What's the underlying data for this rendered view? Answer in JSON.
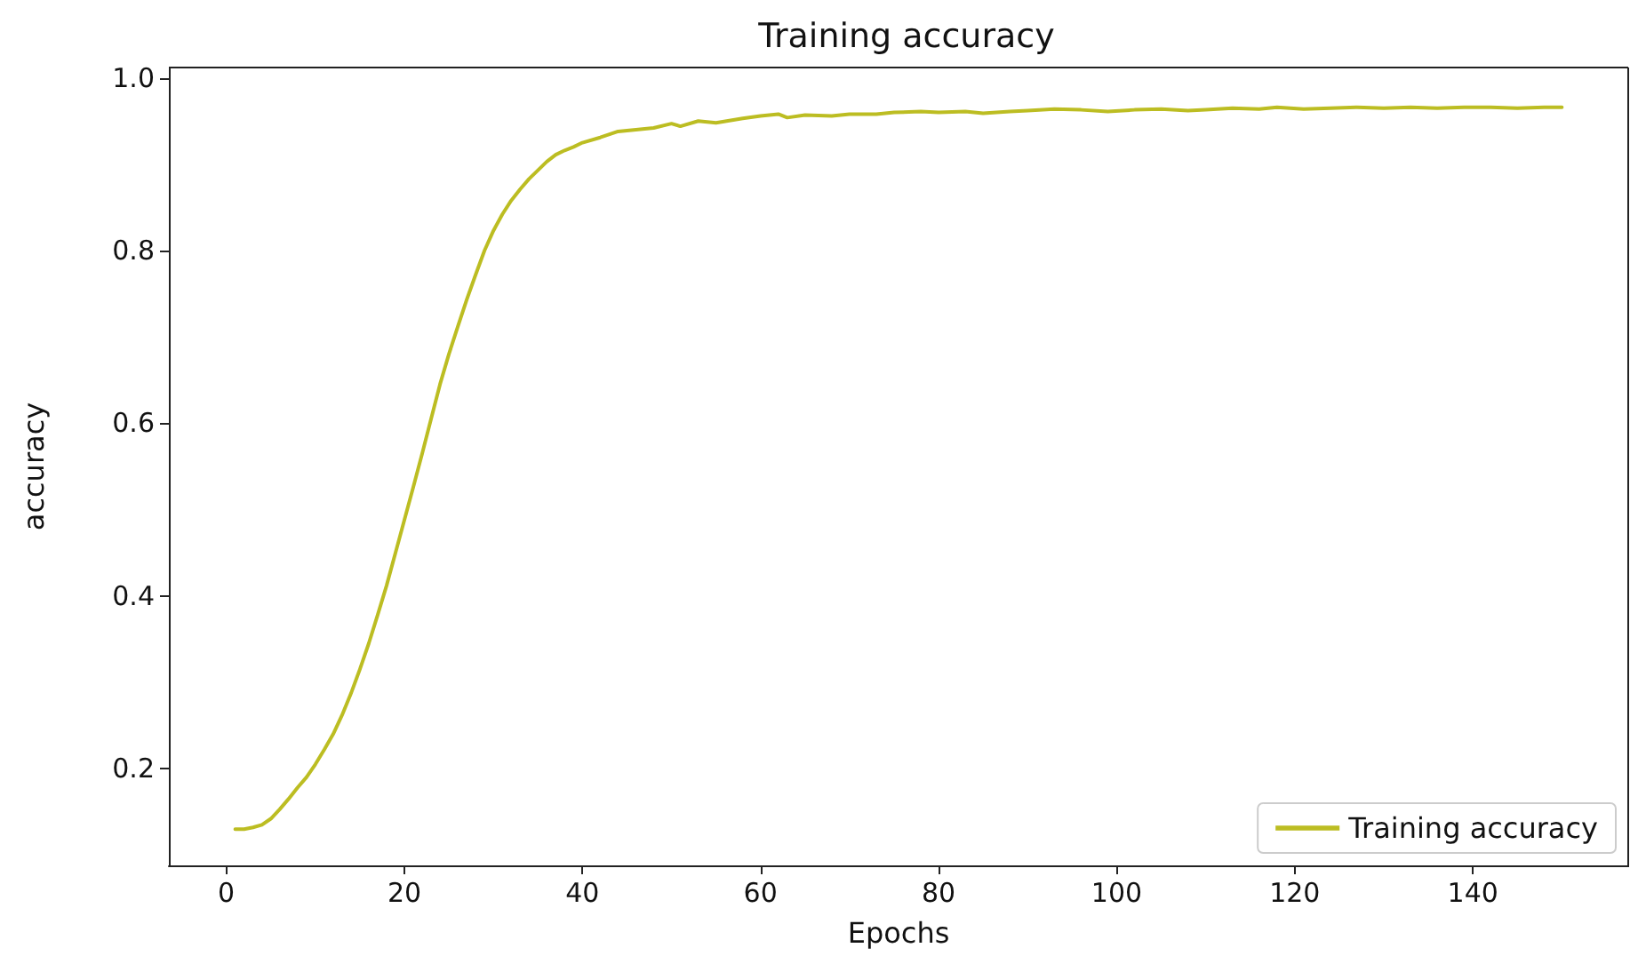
{
  "chart_data": {
    "type": "line",
    "title": "Training accuracy",
    "xlabel": "Epochs",
    "ylabel": "accuracy",
    "xlim": [
      -6.45,
      157.45
    ],
    "xticks": [
      0,
      20,
      40,
      60,
      80,
      100,
      120,
      140
    ],
    "ylim": [
      0.088,
      1.012
    ],
    "yticks": [
      {
        "value": 0.2,
        "label": "0.2"
      },
      {
        "value": 0.4,
        "label": "0.4"
      },
      {
        "value": 0.6,
        "label": "0.6"
      },
      {
        "value": 0.8,
        "label": "0.8"
      },
      {
        "value": 1.0,
        "label": "1.0"
      }
    ],
    "legend": "bottom right",
    "grid": false,
    "marker": "none",
    "line_style": "solid",
    "x": [
      1,
      2,
      3,
      4,
      5,
      6,
      7,
      8,
      9,
      10,
      11,
      12,
      13,
      14,
      15,
      16,
      17,
      18,
      19,
      20,
      21,
      22,
      23,
      24,
      25,
      26,
      27,
      28,
      29,
      30,
      31,
      32,
      33,
      34,
      35,
      36,
      37,
      38,
      39,
      40,
      42,
      44,
      46,
      48,
      50,
      51,
      53,
      55,
      58,
      60,
      62,
      63,
      65,
      68,
      70,
      73,
      75,
      78,
      80,
      83,
      85,
      88,
      90,
      93,
      96,
      99,
      102,
      105,
      108,
      110,
      113,
      116,
      118,
      121,
      124,
      127,
      130,
      133,
      136,
      139,
      142,
      145,
      148,
      150
    ],
    "series": [
      {
        "name": "Training accuracy",
        "color": "#bcbd22",
        "values": [
          0.13,
          0.13,
          0.132,
          0.135,
          0.142,
          0.153,
          0.165,
          0.178,
          0.19,
          0.205,
          0.222,
          0.24,
          0.262,
          0.287,
          0.315,
          0.345,
          0.378,
          0.412,
          0.45,
          0.488,
          0.526,
          0.565,
          0.605,
          0.645,
          0.68,
          0.712,
          0.743,
          0.772,
          0.8,
          0.823,
          0.842,
          0.858,
          0.871,
          0.883,
          0.893,
          0.903,
          0.911,
          0.916,
          0.92,
          0.925,
          0.931,
          0.938,
          0.94,
          0.942,
          0.947,
          0.944,
          0.95,
          0.948,
          0.953,
          0.956,
          0.958,
          0.954,
          0.957,
          0.956,
          0.958,
          0.958,
          0.96,
          0.961,
          0.96,
          0.961,
          0.959,
          0.961,
          0.962,
          0.964,
          0.963,
          0.961,
          0.963,
          0.964,
          0.962,
          0.963,
          0.965,
          0.964,
          0.966,
          0.964,
          0.965,
          0.966,
          0.965,
          0.966,
          0.965,
          0.966,
          0.966,
          0.965,
          0.966,
          0.966
        ]
      }
    ]
  }
}
